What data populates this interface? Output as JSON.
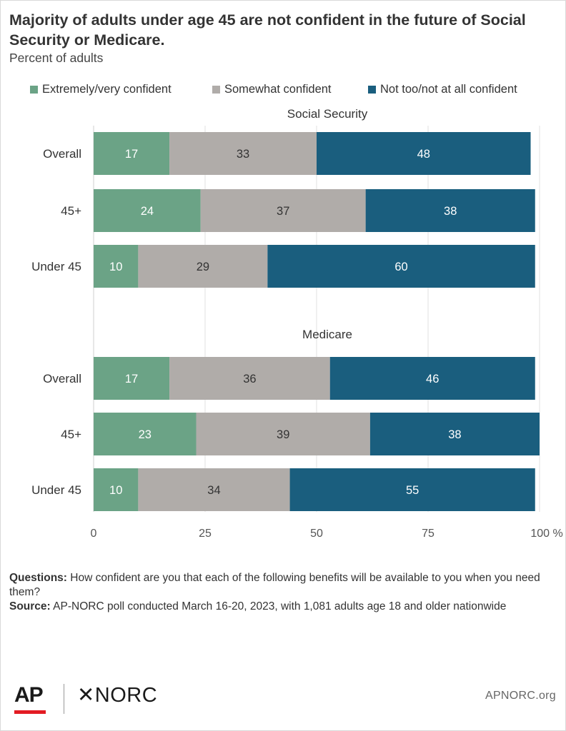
{
  "title": "Majority of adults under age 45 are not confident in the future of Social Security or Medicare.",
  "subtitle": "Percent of adults",
  "legend": [
    {
      "label": "Extremely/very confident",
      "color": "#6ba386"
    },
    {
      "label": "Somewhat confident",
      "color": "#b0aca9"
    },
    {
      "label": "Not too/not at all confident",
      "color": "#1a5e7e"
    }
  ],
  "chart_data": {
    "type": "bar",
    "orientation": "horizontal",
    "stacked": true,
    "xlim": [
      0,
      100
    ],
    "x_ticks": [
      "0",
      "25",
      "50",
      "75",
      "100 %"
    ],
    "grid": true,
    "legend_position": "top",
    "series_names": [
      "Extremely/very confident",
      "Somewhat confident",
      "Not too/not at all confident"
    ],
    "groups": [
      {
        "title": "Social Security",
        "rows": [
          {
            "label": "Overall",
            "values": [
              17,
              33,
              48
            ]
          },
          {
            "label": "45+",
            "values": [
              24,
              37,
              38
            ]
          },
          {
            "label": "Under 45",
            "values": [
              10,
              29,
              60
            ]
          }
        ]
      },
      {
        "title": "Medicare",
        "rows": [
          {
            "label": "Overall",
            "values": [
              17,
              36,
              46
            ]
          },
          {
            "label": "45+",
            "values": [
              23,
              39,
              38
            ]
          },
          {
            "label": "Under 45",
            "values": [
              10,
              34,
              55
            ]
          }
        ]
      }
    ]
  },
  "notes": {
    "questions_label": "Questions:",
    "questions_text": "How confident are you that each of the following benefits will be available to you when you need them?",
    "source_label": "Source:",
    "source_text": "AP-NORC poll conducted March 16-20, 2023, with 1,081 adults age 18 and older nationwide"
  },
  "footer": {
    "logo_ap": "AP",
    "logo_norc": "✕NORC",
    "site": "APNORC.org"
  }
}
